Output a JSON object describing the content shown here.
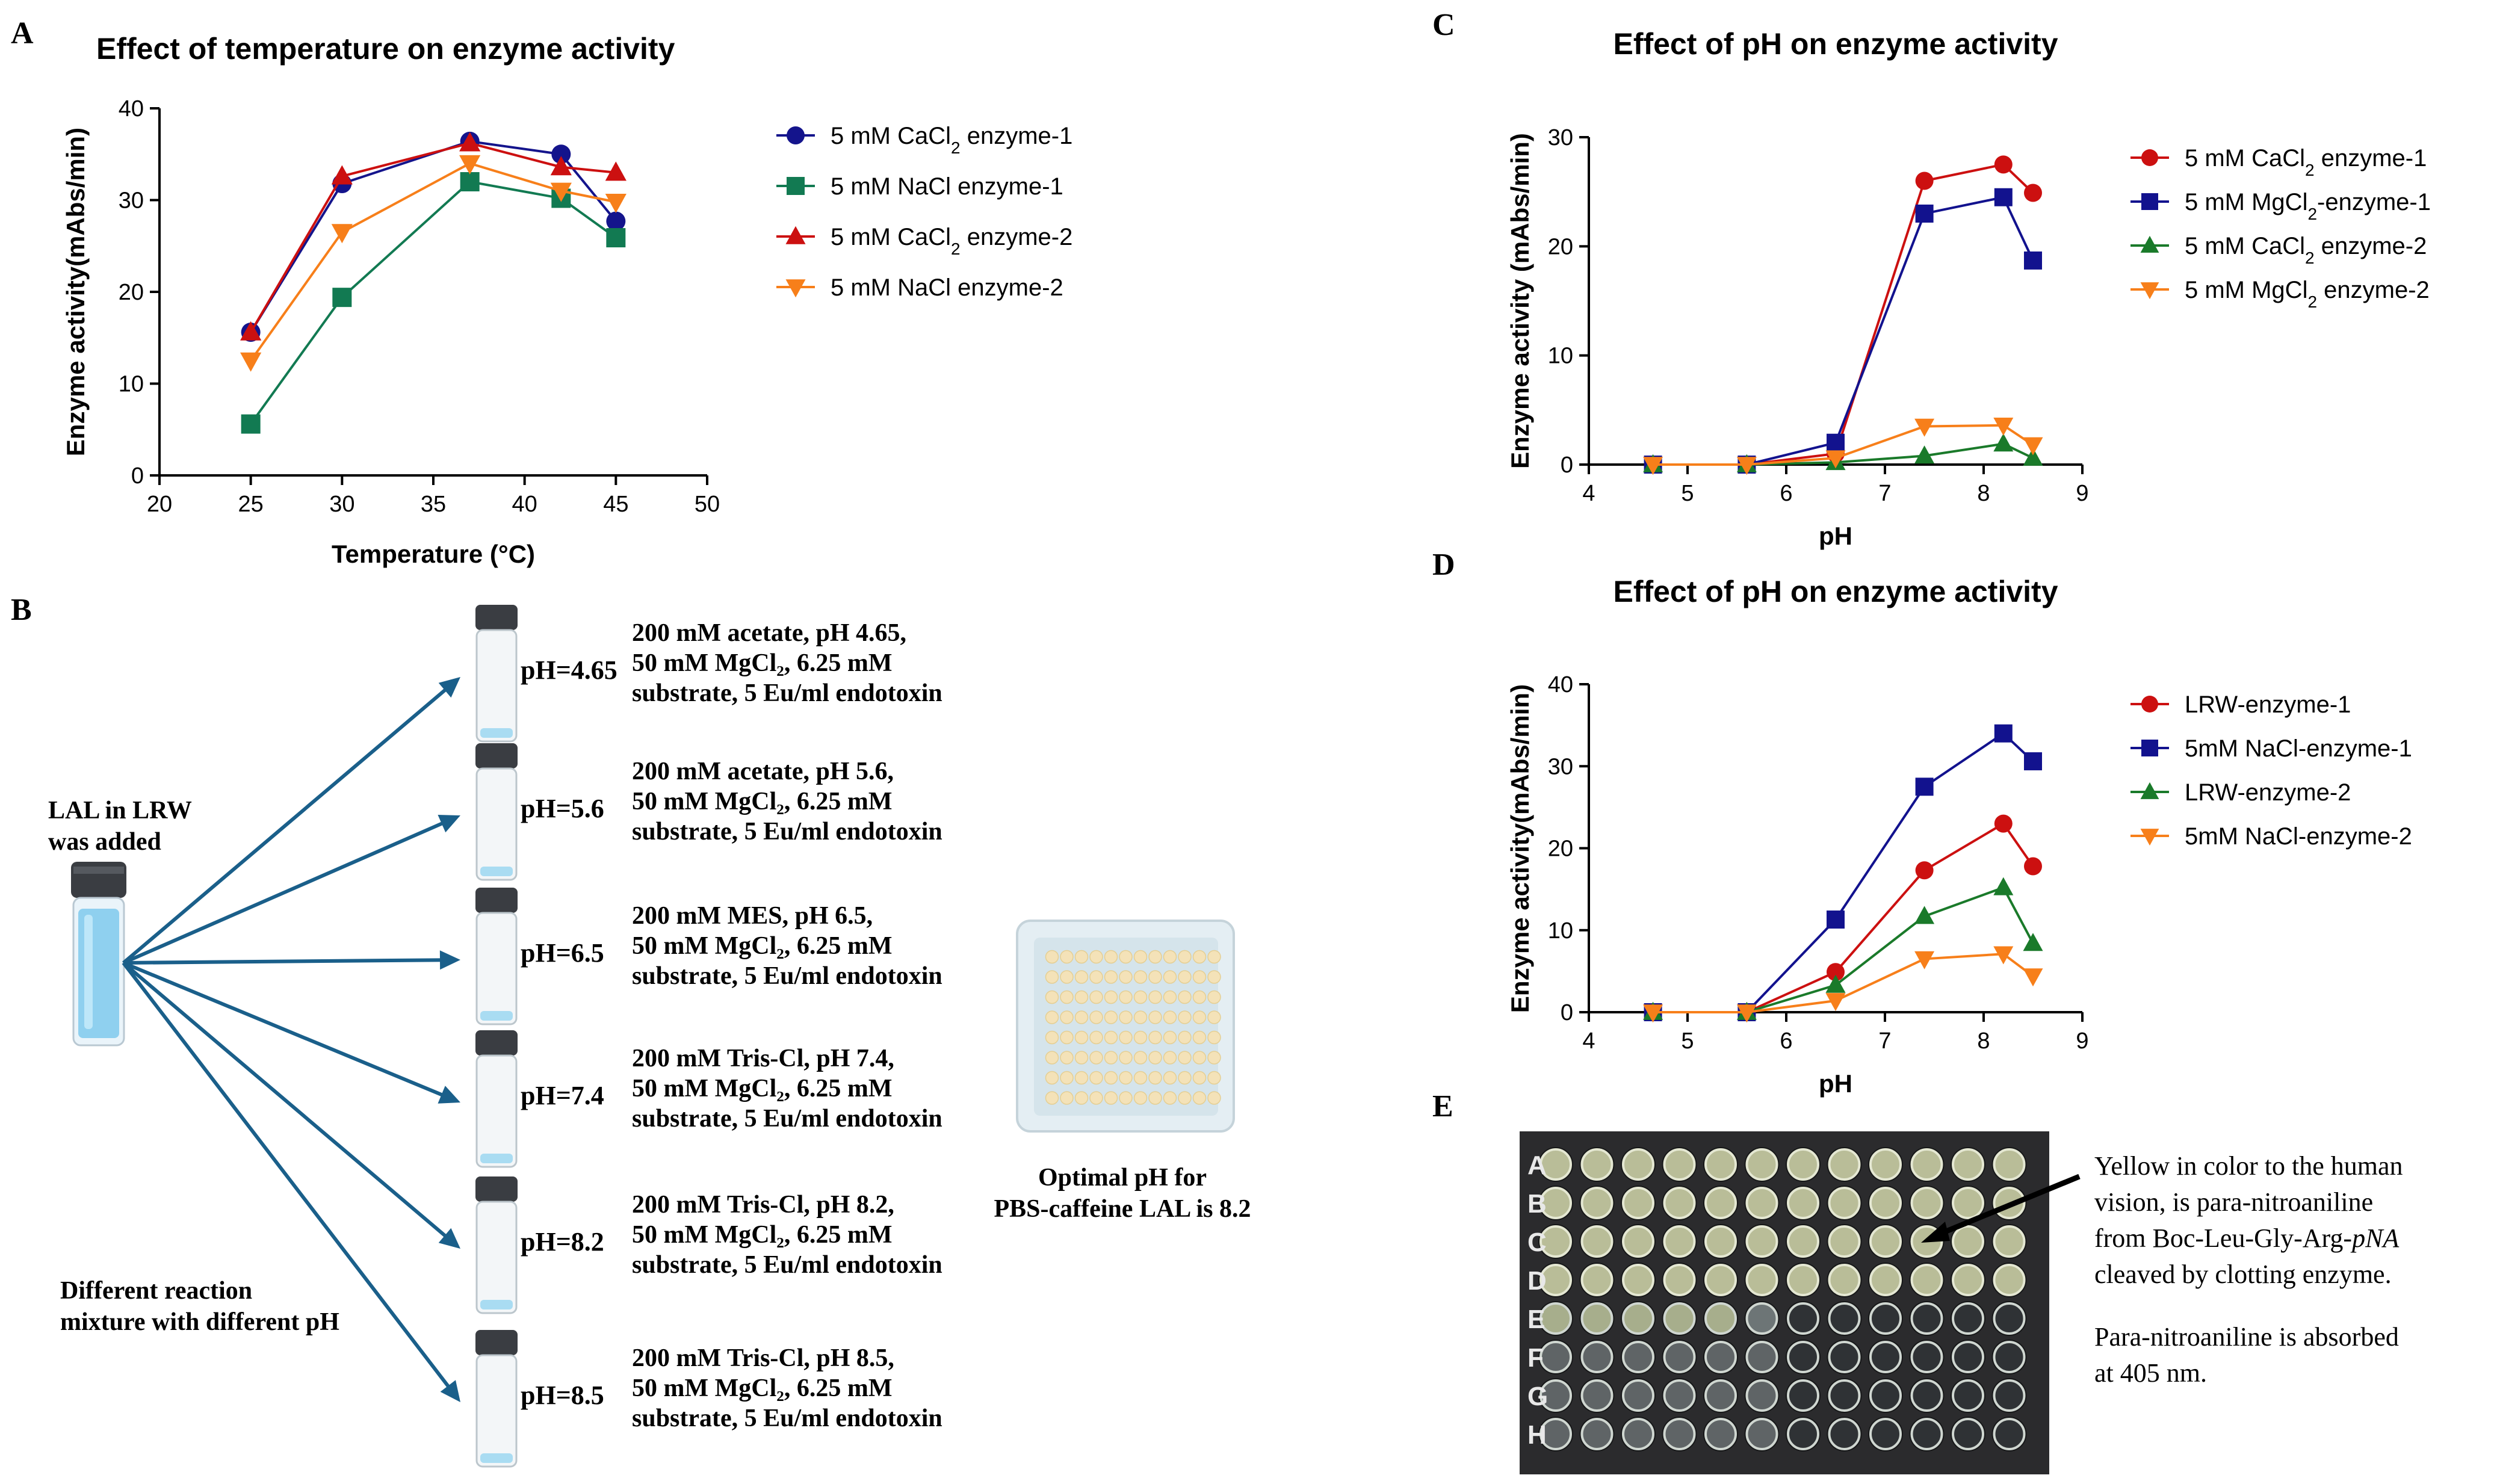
{
  "colors": {
    "navy": "#14148c",
    "green": "#127a52",
    "red": "#cc1010",
    "orange": "#f77f1a",
    "blue_navy": "#12128e",
    "green_c": "#1a7a2a",
    "arrow": "#1a5f8a"
  },
  "chart_data": [
    {
      "panel": "A",
      "type": "line",
      "title": "Effect of temperature on enzyme activity",
      "xlabel": "Temperature (°C)",
      "ylabel": "Enzyme activity(mAbs/min)",
      "xlim": [
        20,
        50
      ],
      "ylim": [
        0,
        40
      ],
      "xticks": [
        20,
        25,
        30,
        35,
        40,
        45,
        50
      ],
      "yticks": [
        0,
        10,
        20,
        30,
        40
      ],
      "legend_position": "right",
      "series": [
        {
          "name": "5 mM CaCl₂ enzyme-1",
          "marker": "circle",
          "color": "#14148c",
          "x": [
            25,
            30,
            37,
            42,
            45
          ],
          "values": [
            15.6,
            31.8,
            36.4,
            35.0,
            27.7
          ]
        },
        {
          "name": "5 mM NaCl enzyme-1",
          "marker": "square",
          "color": "#127a52",
          "x": [
            25,
            30,
            37,
            42,
            45
          ],
          "values": [
            5.6,
            19.4,
            32.0,
            30.2,
            25.9
          ]
        },
        {
          "name": "5 mM CaCl₂ enzyme-2",
          "marker": "triangle-up",
          "color": "#cc1010",
          "x": [
            25,
            30,
            37,
            42,
            45
          ],
          "values": [
            15.6,
            32.6,
            36.2,
            33.6,
            33.0
          ]
        },
        {
          "name": "5 mM NaCl enzyme-2",
          "marker": "triangle-down",
          "color": "#f77f1a",
          "x": [
            25,
            30,
            37,
            42,
            45
          ],
          "values": [
            12.5,
            26.5,
            34.0,
            31.0,
            29.8
          ]
        }
      ]
    },
    {
      "panel": "C",
      "type": "line",
      "title": "Effect of pH on enzyme activity",
      "xlabel": "pH",
      "ylabel": "Enzyme activity (mAbs/min)",
      "xlim": [
        4,
        9
      ],
      "ylim": [
        0,
        30
      ],
      "xticks": [
        4,
        5,
        6,
        7,
        8,
        9
      ],
      "yticks": [
        0,
        10,
        20,
        30
      ],
      "legend_position": "right",
      "series": [
        {
          "name": "5 mM CaCl₂ enzyme-1",
          "marker": "circle",
          "color": "#cc1010",
          "x": [
            4.65,
            5.6,
            6.5,
            7.4,
            8.2,
            8.5
          ],
          "values": [
            0,
            0,
            1.0,
            26.0,
            27.5,
            24.9
          ]
        },
        {
          "name": "5 mM MgCl₂-enzyme-1",
          "marker": "square",
          "color": "#12128e",
          "x": [
            4.65,
            5.6,
            6.5,
            7.4,
            8.2,
            8.5
          ],
          "values": [
            0,
            0,
            2.0,
            23.0,
            24.5,
            18.7
          ]
        },
        {
          "name": "5 mM CaCl₂ enzyme-2",
          "marker": "triangle-up",
          "color": "#1a7a2a",
          "x": [
            4.65,
            5.6,
            6.5,
            7.4,
            8.2,
            8.5
          ],
          "values": [
            0,
            0,
            0.2,
            0.8,
            1.9,
            0.6
          ]
        },
        {
          "name": "5 mM MgCl₂ enzyme-2",
          "marker": "triangle-down",
          "color": "#f77f1a",
          "x": [
            4.65,
            5.6,
            6.5,
            7.4,
            8.2,
            8.5
          ],
          "values": [
            0,
            0,
            0.6,
            3.5,
            3.6,
            1.8
          ]
        }
      ]
    },
    {
      "panel": "D",
      "type": "line",
      "title": "Effect of pH on enzyme activity",
      "xlabel": "pH",
      "ylabel": "Enzyme activity(mAbs/min)",
      "xlim": [
        4,
        9
      ],
      "ylim": [
        0,
        40
      ],
      "xticks": [
        4,
        5,
        6,
        7,
        8,
        9
      ],
      "yticks": [
        0,
        10,
        20,
        30,
        40
      ],
      "legend_position": "right",
      "series": [
        {
          "name": "LRW-enzyme-1",
          "marker": "circle",
          "color": "#cc1010",
          "x": [
            4.65,
            5.6,
            6.5,
            7.4,
            8.2,
            8.5
          ],
          "values": [
            0,
            0,
            4.9,
            17.3,
            23.0,
            17.8
          ]
        },
        {
          "name": "5mM NaCl-enzyme-1",
          "marker": "square",
          "color": "#12128e",
          "x": [
            4.65,
            5.6,
            6.5,
            7.4,
            8.2,
            8.5
          ],
          "values": [
            0,
            0,
            11.3,
            27.5,
            34.0,
            30.6
          ]
        },
        {
          "name": "LRW-enzyme-2",
          "marker": "triangle-up",
          "color": "#1a7a2a",
          "x": [
            4.65,
            5.6,
            6.5,
            7.4,
            8.2,
            8.5
          ],
          "values": [
            0,
            0,
            3.3,
            11.7,
            15.2,
            8.4
          ]
        },
        {
          "name": "5mM NaCl-enzyme-2",
          "marker": "triangle-down",
          "color": "#f77f1a",
          "x": [
            4.65,
            5.6,
            6.5,
            7.4,
            8.2,
            8.5
          ],
          "values": [
            0,
            0,
            1.4,
            6.5,
            7.1,
            4.4
          ]
        }
      ]
    }
  ],
  "panels": {
    "a": "A",
    "b": "B",
    "c": "C",
    "d": "D",
    "e": "E"
  },
  "panel_b": {
    "source_line1": "LAL in LRW",
    "source_line2": "was added",
    "footer_line1": "Different reaction",
    "footer_line2": "mixture with different pH",
    "optimal_line1": "Optimal pH for",
    "optimal_line2": "PBS-caffeine LAL is 8.2",
    "tubes": [
      {
        "ph": "pH=4.65",
        "l1": "200 mM acetate, pH 4.65,",
        "l2": "50 mM MgCl₂, 6.25 mM",
        "l3": "substrate, 5 Eu/ml endotoxin"
      },
      {
        "ph": "pH=5.6",
        "l1": "200 mM acetate, pH 5.6,",
        "l2": "50 mM MgCl₂, 6.25 mM",
        "l3": "substrate, 5 Eu/ml endotoxin"
      },
      {
        "ph": "pH=6.5",
        "l1": "200 mM MES, pH 6.5,",
        "l2": "50 mM MgCl₂, 6.25 mM",
        "l3": "substrate,  5 Eu/ml endotoxin"
      },
      {
        "ph": "pH=7.4",
        "l1": "200 mM Tris-Cl, pH 7.4,",
        "l2": "50 mM MgCl₂, 6.25 mM",
        "l3": "substrate, 5 Eu/ml endotoxin"
      },
      {
        "ph": "pH=8.2",
        "l1": "200 mM Tris-Cl, pH 8.2,",
        "l2": "50 mM MgCl₂, 6.25 mM",
        "l3": "substrate, 5 Eu/ml endotoxin"
      },
      {
        "ph": "pH=8.5",
        "l1": "200 mM Tris-Cl, pH 8.5,",
        "l2": "50 mM MgCl₂, 6.25 mM",
        "l3": "substrate, 5 Eu/ml endotoxin"
      }
    ]
  },
  "panel_e": {
    "rows": [
      "A",
      "B",
      "C",
      "D",
      "E",
      "F",
      "G",
      "H"
    ],
    "note_lines": [
      "Yellow in color to the human",
      "vision, is para-nitroaniline",
      "from Boc-Leu-Gly-Arg-",
      "cleaved by clotting enzyme."
    ],
    "note_italic": "pNA",
    "note2_line1": "Para-nitroaniline is absorbed",
    "note2_line2": "at 405 nm."
  }
}
